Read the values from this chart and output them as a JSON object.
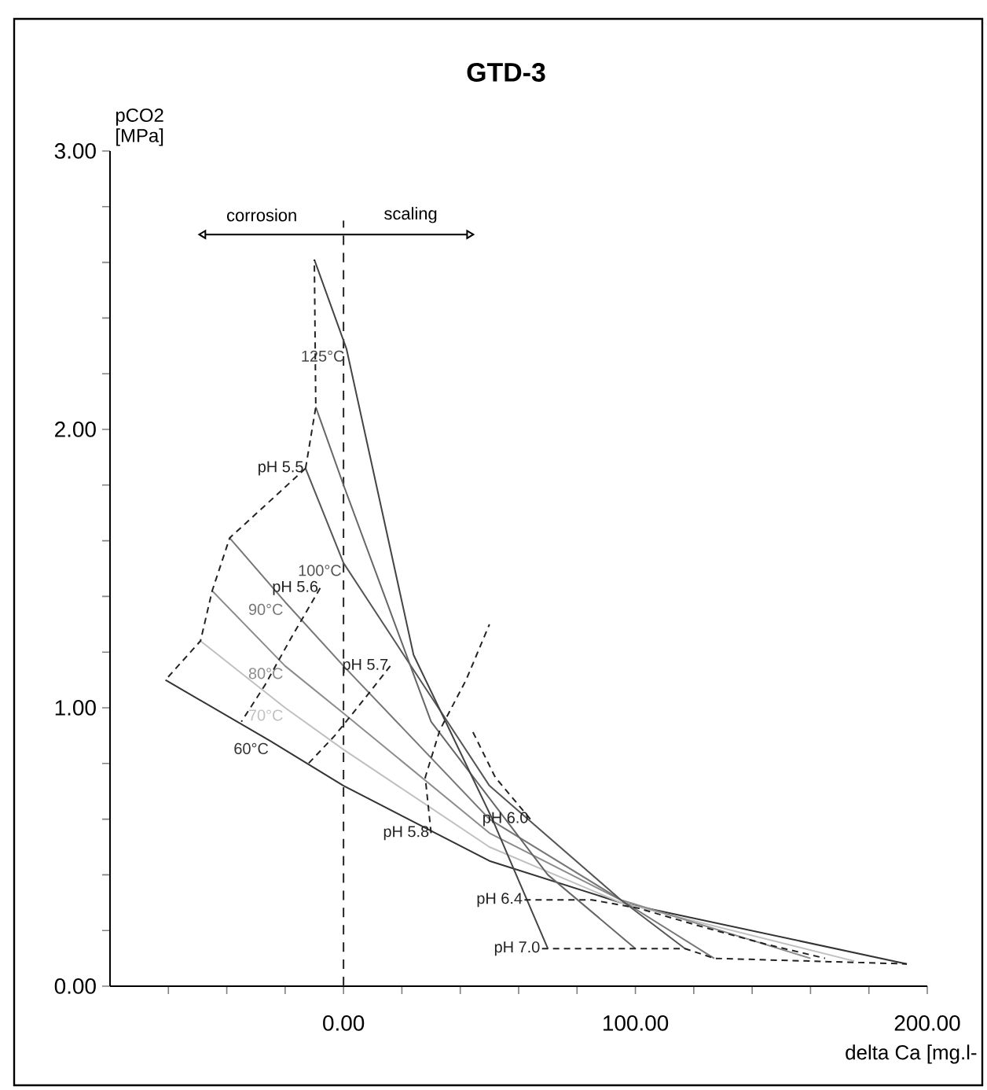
{
  "chart_data": {
    "type": "line",
    "title": "GTD-3",
    "xlabel": "delta Ca [mg.l-",
    "ylabel": "pCO2 [MPa]",
    "xlim": [
      -80,
      200
    ],
    "xticks": [
      {
        "value": -60,
        "label": null
      },
      {
        "value": -40,
        "label": null
      },
      {
        "value": -20,
        "label": null
      },
      {
        "value": 0,
        "label": "0.00"
      },
      {
        "value": 20,
        "label": null
      },
      {
        "value": 40,
        "label": null
      },
      {
        "value": 60,
        "label": null
      },
      {
        "value": 80,
        "label": null
      },
      {
        "value": 100,
        "label": "100.00"
      },
      {
        "value": 120,
        "label": null
      },
      {
        "value": 140,
        "label": null
      },
      {
        "value": 160,
        "label": null
      },
      {
        "value": 180,
        "label": null
      },
      {
        "value": 200,
        "label": "200.00"
      }
    ],
    "ylim": [
      0,
      3
    ],
    "yticks": [
      {
        "value": 0,
        "label": "0.00"
      },
      {
        "value": 0.2,
        "label": null
      },
      {
        "value": 0.4,
        "label": null
      },
      {
        "value": 0.6,
        "label": null
      },
      {
        "value": 0.8,
        "label": null
      },
      {
        "value": 1,
        "label": "1.00"
      },
      {
        "value": 1.2,
        "label": null
      },
      {
        "value": 1.4,
        "label": null
      },
      {
        "value": 1.6,
        "label": null
      },
      {
        "value": 1.8,
        "label": null
      },
      {
        "value": 2,
        "label": "2.00"
      },
      {
        "value": 2.2,
        "label": null
      },
      {
        "value": 2.4,
        "label": null
      },
      {
        "value": 2.6,
        "label": null
      },
      {
        "value": 2.8,
        "label": null
      },
      {
        "value": 3,
        "label": "3.00"
      }
    ],
    "marker": "none",
    "ref_lines": [
      {
        "axis": "x",
        "value": 0,
        "color": "#222222",
        "line_style": "dashed"
      }
    ],
    "annotations": [
      "corrosion",
      "scaling"
    ],
    "series": [
      {
        "name": "60°C",
        "color": "#333333",
        "line_style": "solid",
        "x": [
          -61,
          -25,
          0,
          50,
          95,
          193
        ],
        "values": [
          1.1,
          0.88,
          0.72,
          0.45,
          0.3,
          0.08
        ]
      },
      {
        "name": "70°C",
        "color": "#c0c0c0",
        "line_style": "solid",
        "x": [
          -49,
          -20,
          0,
          50,
          95,
          175
        ],
        "values": [
          1.24,
          1.0,
          0.85,
          0.5,
          0.3,
          0.09
        ]
      },
      {
        "name": "80°C",
        "color": "#8c8c8c",
        "line_style": "solid",
        "x": [
          -45,
          -20,
          0,
          50,
          95,
          160
        ],
        "values": [
          1.42,
          1.15,
          0.98,
          0.55,
          0.31,
          0.1
        ]
      },
      {
        "name": "90°C",
        "color": "#777777",
        "line_style": "solid",
        "x": [
          -39,
          -20,
          0,
          50,
          95,
          127
        ],
        "values": [
          1.61,
          1.38,
          1.15,
          0.6,
          0.31,
          0.1
        ]
      },
      {
        "name": "100°C",
        "color": "#555555",
        "line_style": "solid",
        "x": [
          -13,
          0,
          50,
          95,
          117
        ],
        "values": [
          1.86,
          1.52,
          0.72,
          0.31,
          0.135
        ]
      },
      {
        "color": "#666666",
        "line_style": "solid",
        "x": [
          -9.5,
          0,
          30,
          70,
          100
        ],
        "values": [
          2.08,
          1.8,
          0.95,
          0.4,
          0.135
        ]
      },
      {
        "name": "125°C",
        "color": "#444444",
        "line_style": "solid",
        "x": [
          -10,
          1,
          24,
          51,
          70
        ],
        "values": [
          2.61,
          2.29,
          1.19,
          0.6,
          0.135
        ]
      },
      {
        "name": "pH 5.5",
        "color": "#222222",
        "line_style": "dashed",
        "x": [
          -13,
          -39,
          -45,
          -49,
          -61
        ],
        "values": [
          1.86,
          1.61,
          1.42,
          1.24,
          1.1
        ]
      },
      {
        "color": "#222222",
        "line_style": "dashed",
        "x": [
          -13,
          -9.5,
          -10
        ],
        "values": [
          1.86,
          2.08,
          2.61
        ]
      },
      {
        "name": "pH 5.6",
        "color": "#222222",
        "line_style": "dashed",
        "x": [
          -8,
          -18,
          -27,
          -35
        ],
        "values": [
          1.43,
          1.25,
          1.08,
          0.95
        ]
      },
      {
        "name": "pH 5.7",
        "color": "#222222",
        "line_style": "dashed",
        "x": [
          16,
          7,
          -3,
          -12
        ],
        "values": [
          1.15,
          1.03,
          0.9,
          0.8
        ]
      },
      {
        "name": "pH 5.8",
        "color": "#222222",
        "line_style": "dashed",
        "x": [
          30,
          28,
          33,
          42,
          50
        ],
        "values": [
          0.55,
          0.75,
          0.92,
          1.1,
          1.3
        ]
      },
      {
        "name": "pH 6.0",
        "color": "#222222",
        "line_style": "dashed",
        "x": [
          64,
          52,
          44
        ],
        "values": [
          0.6,
          0.75,
          0.92
        ]
      },
      {
        "name": "pH 6.4",
        "color": "#222222",
        "line_style": "dashed",
        "x": [
          62,
          85,
          101,
          124,
          145,
          165
        ],
        "values": [
          0.31,
          0.31,
          0.28,
          0.21,
          0.15,
          0.1
        ]
      },
      {
        "name": "pH 7.0",
        "color": "#222222",
        "line_style": "dashed",
        "x": [
          68,
          100,
          117,
          127,
          160,
          193
        ],
        "values": [
          0.135,
          0.135,
          0.135,
          0.1,
          0.09,
          0.08
        ]
      }
    ]
  }
}
